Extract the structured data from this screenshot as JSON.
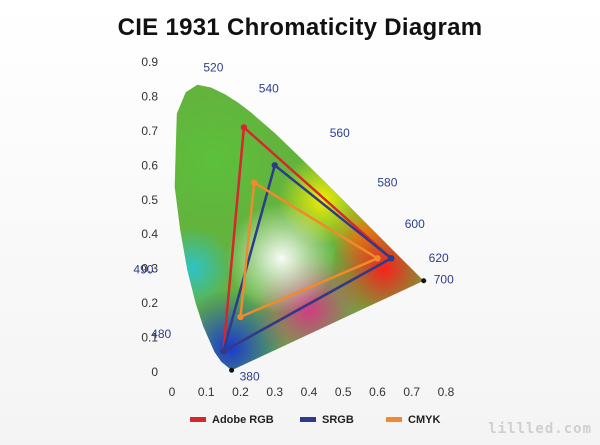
{
  "chart_data": {
    "type": "scatter",
    "title": "CIE 1931 Chromaticity Diagram",
    "xlim": [
      0,
      0.8
    ],
    "ylim": [
      0,
      0.9
    ],
    "xticks": [
      "0",
      "0.1",
      "0.2",
      "0.3",
      "0.4",
      "0.5",
      "0.6",
      "0.7",
      "0.8"
    ],
    "yticks": [
      "0",
      "0.1",
      "0.2",
      "0.3",
      "0.4",
      "0.5",
      "0.6",
      "0.7",
      "0.8",
      "0.9"
    ],
    "spectral_locus_labels": [
      {
        "label": "380",
        "x": 0.174,
        "y": 0.005
      },
      {
        "label": "480",
        "x": 0.091,
        "y": 0.133
      },
      {
        "label": "490",
        "x": 0.045,
        "y": 0.295
      },
      {
        "label": "520",
        "x": 0.074,
        "y": 0.834
      },
      {
        "label": "540",
        "x": 0.23,
        "y": 0.754
      },
      {
        "label": "560",
        "x": 0.373,
        "y": 0.624
      },
      {
        "label": "580",
        "x": 0.512,
        "y": 0.487
      },
      {
        "label": "600",
        "x": 0.627,
        "y": 0.372
      },
      {
        "label": "620",
        "x": 0.691,
        "y": 0.308
      },
      {
        "label": "700",
        "x": 0.735,
        "y": 0.265
      }
    ],
    "series": [
      {
        "name": "Adobe RGB",
        "color": "#d7262e",
        "points": [
          [
            0.21,
            0.71
          ],
          [
            0.64,
            0.33
          ],
          [
            0.15,
            0.06
          ]
        ]
      },
      {
        "name": "SRGB",
        "color": "#2e3a8c",
        "points": [
          [
            0.3,
            0.6
          ],
          [
            0.64,
            0.33
          ],
          [
            0.15,
            0.06
          ]
        ]
      },
      {
        "name": "CMYK",
        "color": "#f08a2c",
        "points": [
          [
            0.24,
            0.55
          ],
          [
            0.6,
            0.33
          ],
          [
            0.2,
            0.16
          ]
        ]
      }
    ],
    "legend": [
      "Adobe RGB",
      "SRGB",
      "CMYK"
    ],
    "legend_position": "bottom"
  },
  "watermark": "lillled.com"
}
